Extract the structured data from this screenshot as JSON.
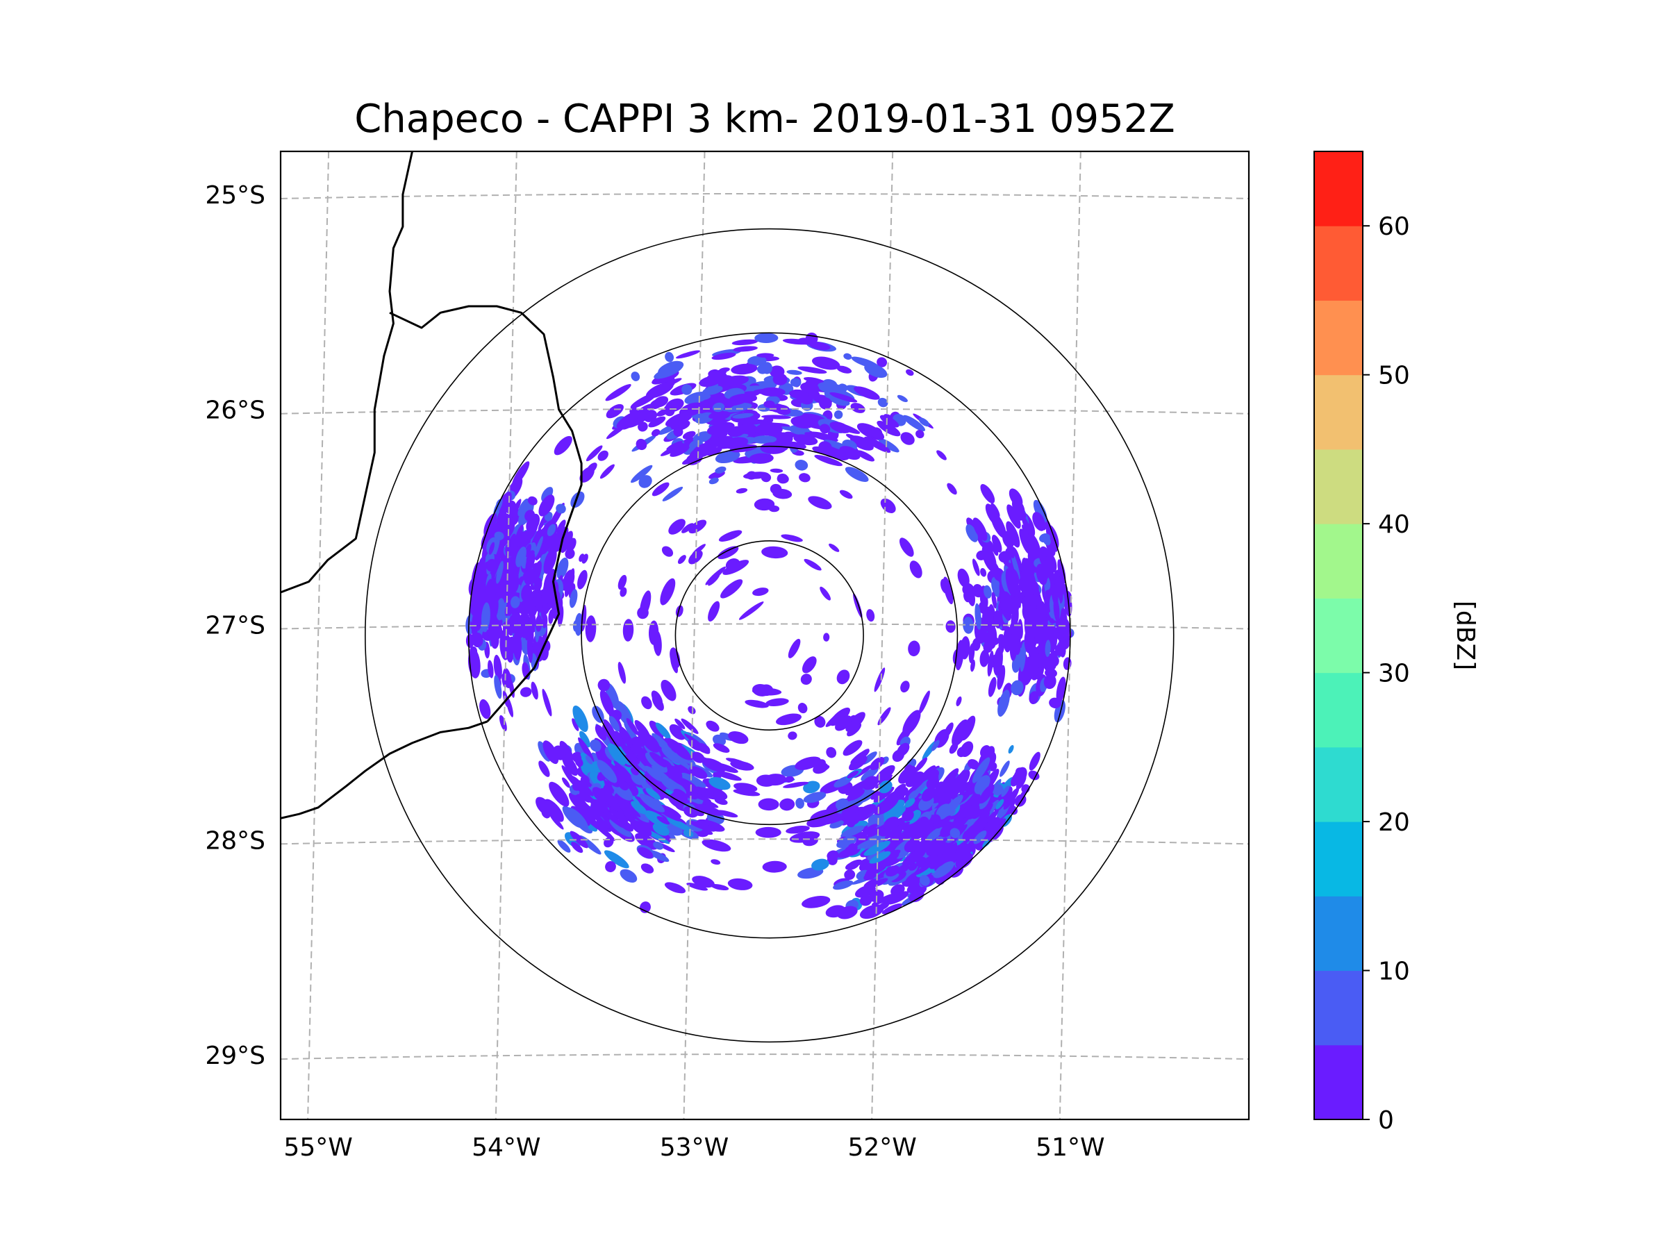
{
  "chart_data": {
    "type": "heatmap",
    "title": "Chapeco - CAPPI 3 km- 2019-01-31 0952Z",
    "radar_site": {
      "lon": -52.6,
      "lat": -27.05
    },
    "map_extent": {
      "lon": [
        -55.2,
        -50.05
      ],
      "lat": [
        -29.3,
        -24.8
      ]
    },
    "x_ticks": [
      {
        "value": -55,
        "label": "55°W"
      },
      {
        "value": -54,
        "label": "54°W"
      },
      {
        "value": -53,
        "label": "53°W"
      },
      {
        "value": -52,
        "label": "52°W"
      },
      {
        "value": -51,
        "label": "51°W"
      }
    ],
    "y_ticks": [
      {
        "value": -25,
        "label": "25°S"
      },
      {
        "value": -26,
        "label": "26°S"
      },
      {
        "value": -27,
        "label": "27°S"
      },
      {
        "value": -28,
        "label": "28°S"
      },
      {
        "value": -29,
        "label": "29°S"
      }
    ],
    "range_rings_deg": [
      0.5,
      1.0,
      1.6,
      2.15
    ],
    "data_coverage_radius_deg": 1.6,
    "grid": true,
    "colorbar": {
      "label": "[dBZ]",
      "min": 0,
      "max": 65,
      "step": 5,
      "tick_labels": [
        "0",
        "10",
        "20",
        "30",
        "40",
        "50",
        "60"
      ],
      "colors": [
        "#6a1cff",
        "#4a5cf4",
        "#1f8be8",
        "#08b8e4",
        "#2edbd0",
        "#4cf2b8",
        "#7cfcaa",
        "#a2f78c",
        "#cddc80",
        "#f2c070",
        "#ff9050",
        "#ff5b34",
        "#ff2016"
      ]
    },
    "echo_regions": [
      {
        "name": "southeast",
        "center": [
          -51.7,
          -27.95
        ],
        "spread": [
          0.55,
          0.35
        ],
        "dbz_range": [
          0,
          12
        ],
        "density": 0.85
      },
      {
        "name": "south-southwest",
        "center": [
          -53.3,
          -27.75
        ],
        "spread": [
          0.35,
          0.3
        ],
        "dbz_range": [
          0,
          15
        ],
        "density": 0.55
      },
      {
        "name": "west",
        "center": [
          -54.0,
          -26.8
        ],
        "spread": [
          0.3,
          0.45
        ],
        "dbz_range": [
          0,
          8
        ],
        "density": 0.5
      },
      {
        "name": "north",
        "center": [
          -52.7,
          -26.0
        ],
        "spread": [
          0.7,
          0.35
        ],
        "dbz_range": [
          0,
          10
        ],
        "density": 0.35
      },
      {
        "name": "east",
        "center": [
          -51.2,
          -26.9
        ],
        "spread": [
          0.3,
          0.45
        ],
        "dbz_range": [
          0,
          8
        ],
        "density": 0.35
      },
      {
        "name": "scattered",
        "center": [
          -52.6,
          -27.05
        ],
        "spread": [
          1.2,
          1.2
        ],
        "dbz_range": [
          0,
          5
        ],
        "density": 0.18
      }
    ]
  }
}
